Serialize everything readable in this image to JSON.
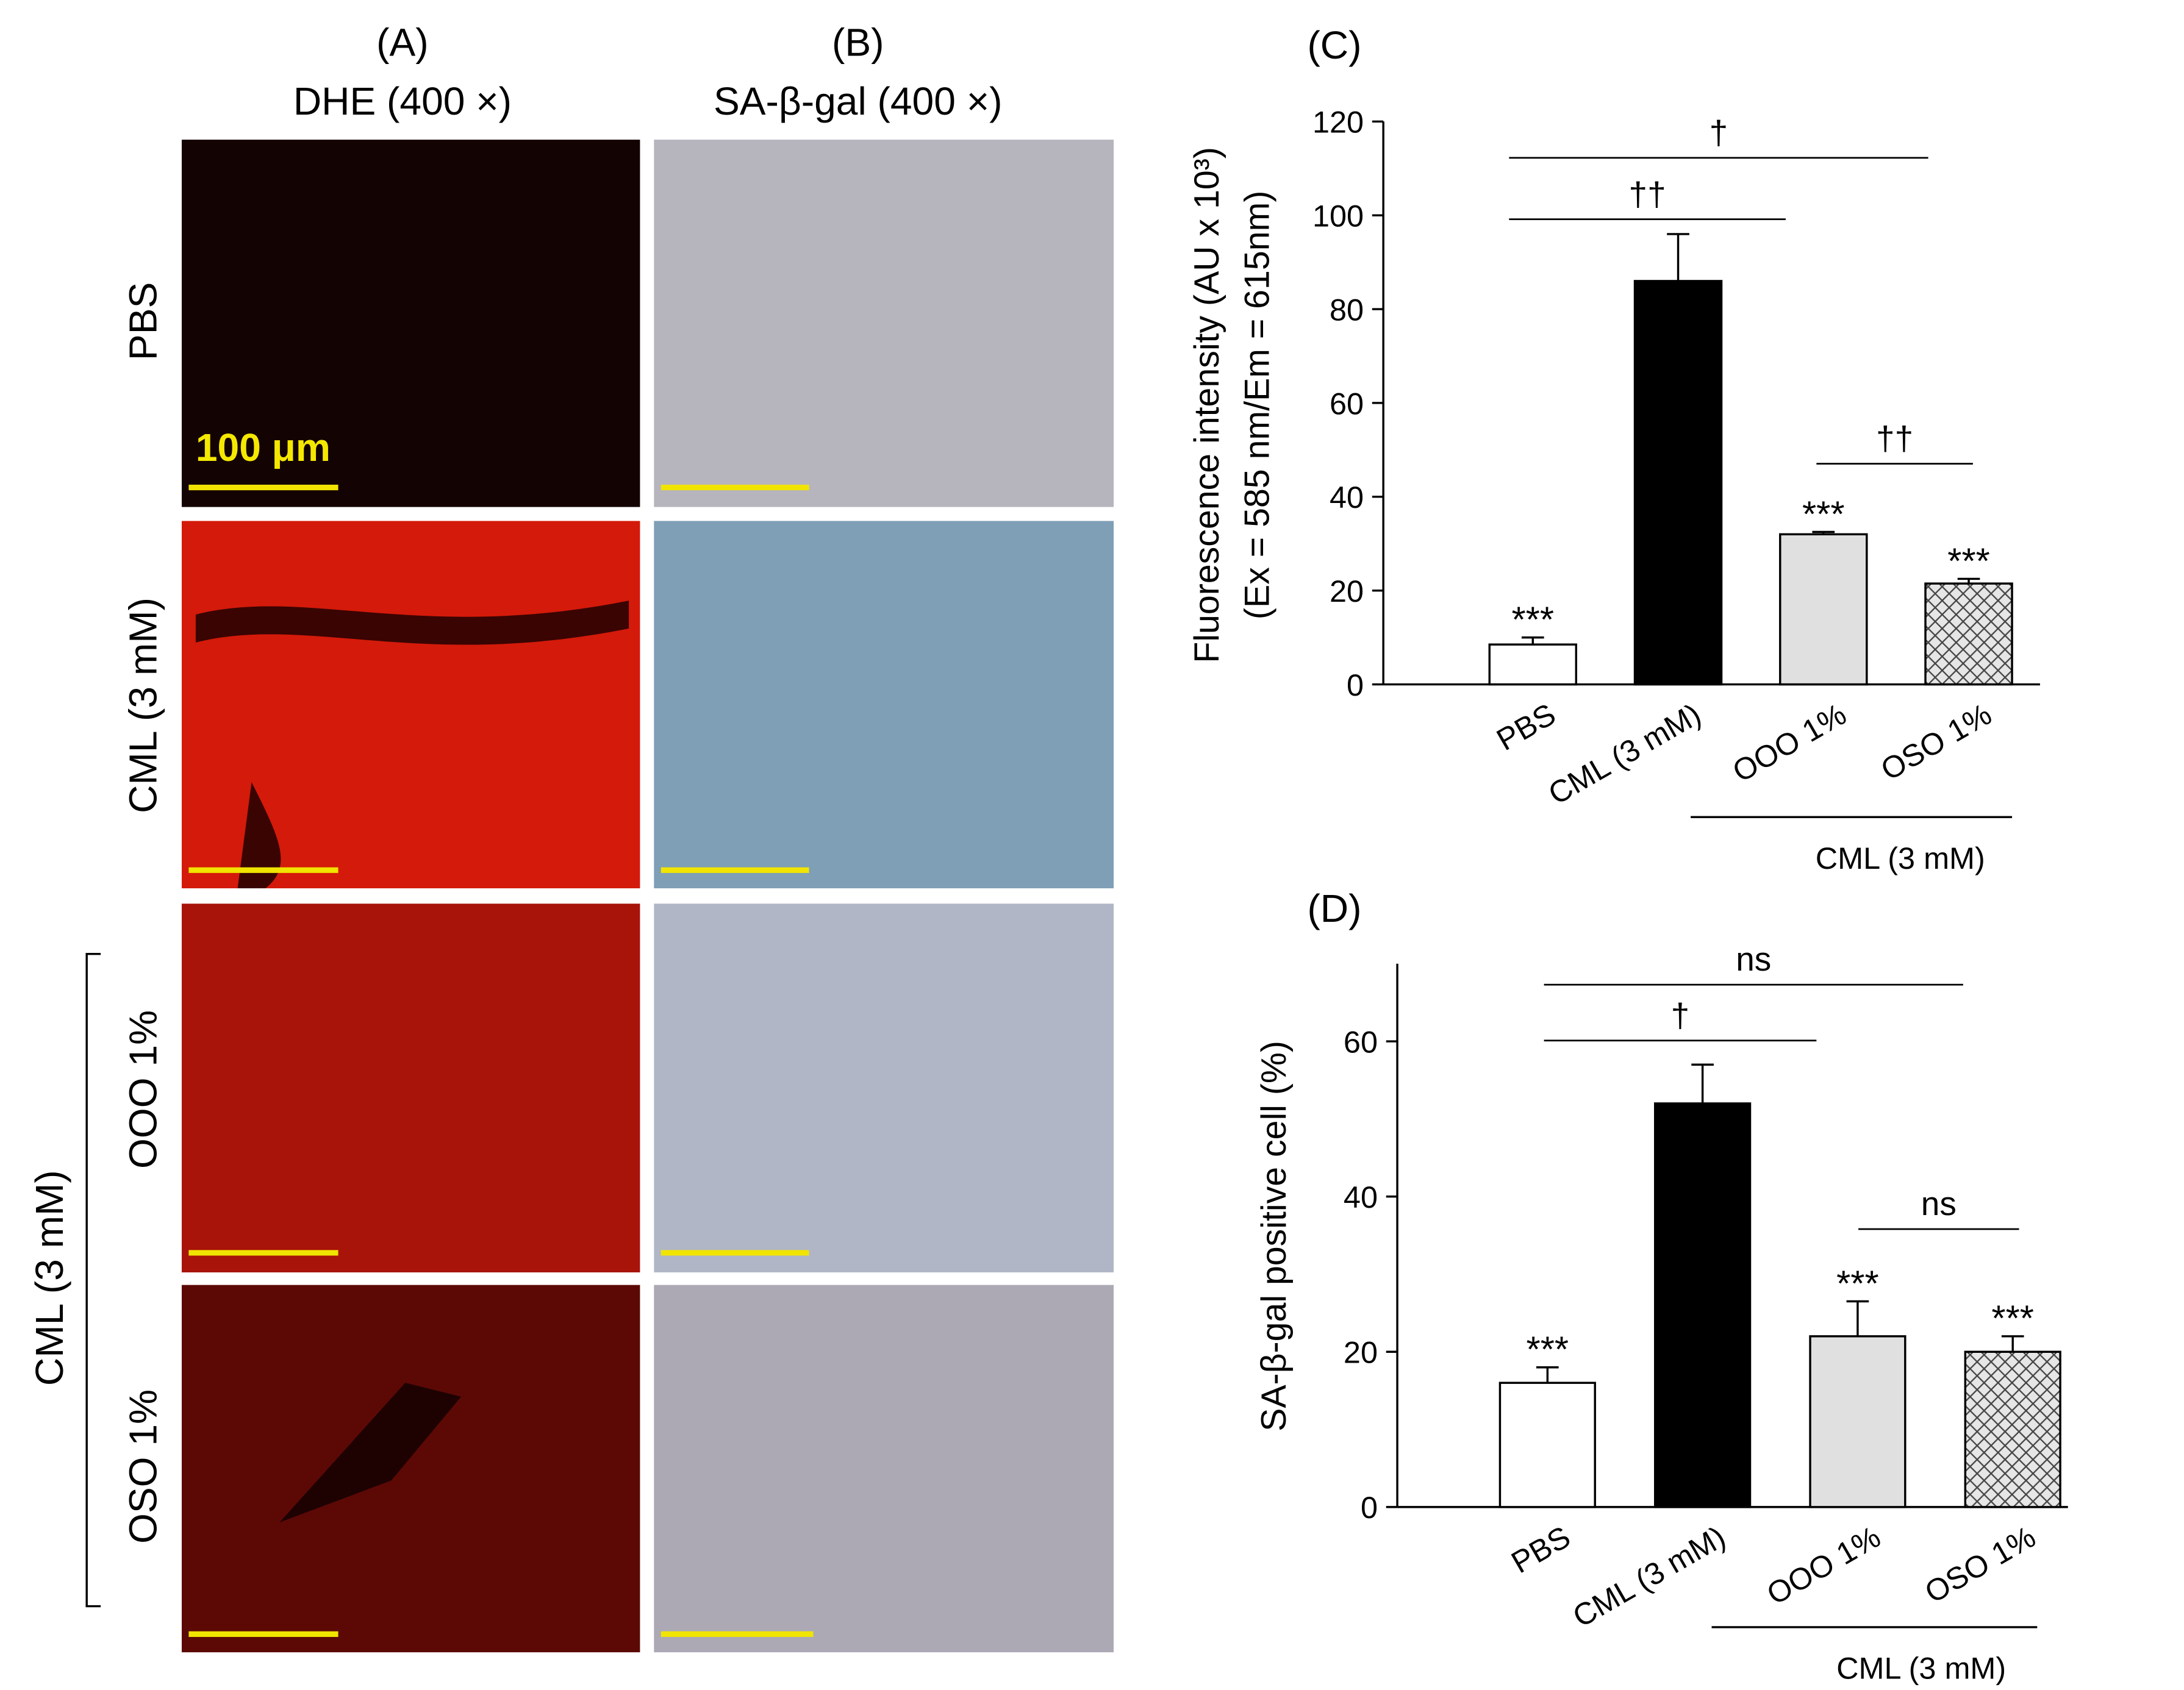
{
  "panel_a": {
    "label": "(A)",
    "title": "DHE (400 ×)",
    "scale_bar": "100 μm"
  },
  "panel_b": {
    "label": "(B)",
    "title": "SA-β-gal (400 ×)"
  },
  "row_labels": [
    "PBS",
    "CML (3 mM)",
    "OOO 1%",
    "OSO 1%"
  ],
  "row_group_label": "CML (3 mM)",
  "chart_data": [
    {
      "type": "bar",
      "title": "(C)",
      "ylabel_lines": [
        "Fluorescence intensity (AU x 10³)",
        "(Ex = 585 nm/Em = 615nm)"
      ],
      "categories": [
        "PBS",
        "CML (3 mM)",
        "OOO 1%",
        "OSO 1%"
      ],
      "values": [
        8.5,
        86,
        32,
        21.5
      ],
      "errors": [
        1.5,
        10,
        0.5,
        1
      ],
      "significance": [
        "***",
        null,
        "***",
        "***"
      ],
      "colors": [
        "#ffffff",
        "#000000",
        "#e0e0e0",
        "#e6e6e6"
      ],
      "hatch": [
        false,
        false,
        false,
        true
      ],
      "brackets": [
        "†",
        "††",
        "††"
      ],
      "group_label": "CML (3 mM)",
      "ylim": [
        0,
        120
      ],
      "yticks": [
        0,
        20,
        40,
        60,
        80,
        100,
        120
      ]
    },
    {
      "type": "bar",
      "title": "(D)",
      "ylabel_lines": [
        "SA-β-gal positive cell (%)"
      ],
      "categories": [
        "PBS",
        "CML (3 mM)",
        "OOO 1%",
        "OSO 1%"
      ],
      "values": [
        16,
        52,
        22,
        20
      ],
      "errors": [
        2,
        5,
        4.5,
        2
      ],
      "significance": [
        "***",
        null,
        "***",
        "***"
      ],
      "colors": [
        "#ffffff",
        "#000000",
        "#e0e0e0",
        "#e6e6e6"
      ],
      "hatch": [
        false,
        false,
        false,
        true
      ],
      "brackets": [
        "ns",
        "†",
        "ns"
      ],
      "group_label": "CML (3 mM)",
      "ylim": [
        0,
        70
      ],
      "yticks": [
        0,
        20,
        40,
        60
      ]
    }
  ]
}
